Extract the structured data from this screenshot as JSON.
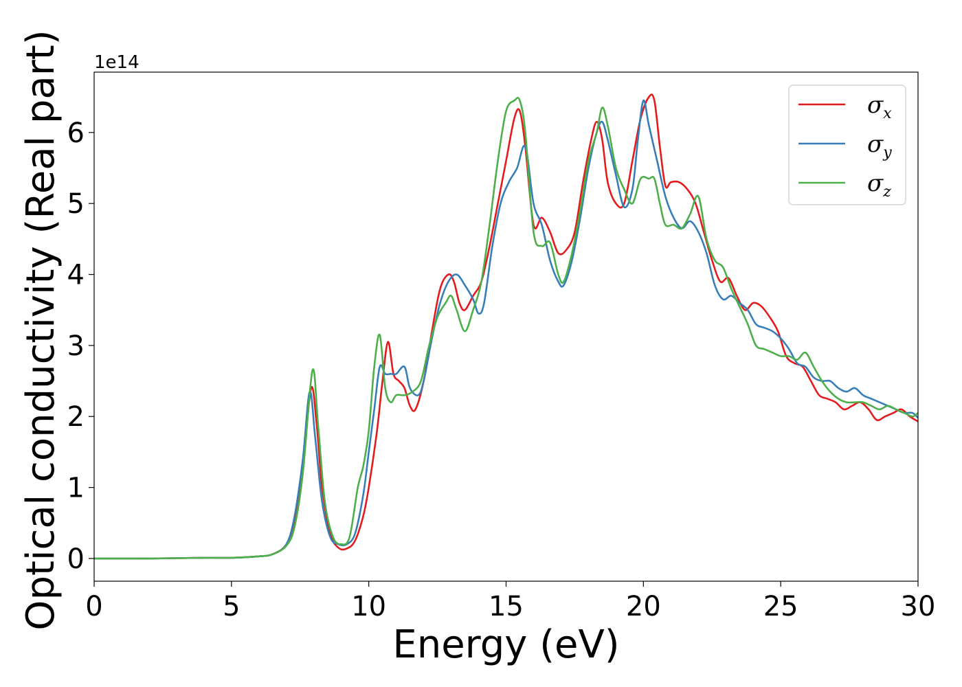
{
  "chart_data": {
    "type": "line",
    "xlabel": "Energy (eV)",
    "ylabel": "Optical conductivity (Real part)",
    "y_offset_label": "1e14",
    "y_scale": 100000000000000.0,
    "xlim": [
      0,
      30
    ],
    "ylim": [
      -0.32,
      6.85
    ],
    "xticks": [
      0,
      5,
      10,
      15,
      20,
      25,
      30
    ],
    "yticks": [
      0,
      1,
      2,
      3,
      4,
      5,
      6
    ],
    "grid": false,
    "legend_position": "top-right",
    "series": [
      {
        "name": "σ",
        "name_sub": "x",
        "color": "#e41a1c",
        "x": [
          0,
          2,
          4,
          5,
          6,
          6.5,
          7,
          7.3,
          7.6,
          7.9,
          8.1,
          8.3,
          8.6,
          8.9,
          9.2,
          9.5,
          9.8,
          10.0,
          10.3,
          10.5,
          10.7,
          10.9,
          11.1,
          11.3,
          11.5,
          11.7,
          12.0,
          12.3,
          12.6,
          12.9,
          13.1,
          13.3,
          13.5,
          13.8,
          14.1,
          14.4,
          14.7,
          15.0,
          15.3,
          15.5,
          15.7,
          16.0,
          16.3,
          16.6,
          16.9,
          17.2,
          17.5,
          17.8,
          18.1,
          18.3,
          18.5,
          18.7,
          19.0,
          19.3,
          19.6,
          19.9,
          20.2,
          20.4,
          20.6,
          20.8,
          21.0,
          21.3,
          21.6,
          21.9,
          22.2,
          22.5,
          22.8,
          23.1,
          23.4,
          23.7,
          24.0,
          24.3,
          24.6,
          24.9,
          25.2,
          25.5,
          25.8,
          26.1,
          26.4,
          26.7,
          27.0,
          27.3,
          27.6,
          27.9,
          28.2,
          28.5,
          28.8,
          29.1,
          29.4,
          29.7,
          30.0
        ],
        "y": [
          0,
          0,
          0.01,
          0.01,
          0.03,
          0.06,
          0.2,
          0.55,
          1.3,
          2.4,
          1.9,
          1.0,
          0.35,
          0.15,
          0.14,
          0.25,
          0.6,
          1.0,
          1.8,
          2.5,
          3.05,
          2.6,
          2.5,
          2.4,
          2.15,
          2.1,
          2.5,
          3.2,
          3.8,
          4.0,
          3.9,
          3.6,
          3.5,
          3.7,
          3.9,
          4.4,
          5.0,
          5.6,
          6.2,
          6.3,
          5.8,
          4.7,
          4.8,
          4.6,
          4.3,
          4.35,
          4.6,
          5.3,
          5.9,
          6.15,
          5.9,
          5.3,
          5.0,
          5.0,
          5.6,
          6.2,
          6.5,
          6.45,
          5.8,
          5.25,
          5.3,
          5.3,
          5.2,
          5.0,
          4.6,
          4.2,
          3.9,
          3.95,
          3.7,
          3.5,
          3.6,
          3.55,
          3.4,
          3.2,
          2.85,
          2.75,
          2.7,
          2.5,
          2.3,
          2.25,
          2.2,
          2.1,
          2.15,
          2.2,
          2.1,
          1.95,
          2.0,
          2.05,
          2.1,
          2.0,
          1.93
        ]
      },
      {
        "name": "σ",
        "name_sub": "y",
        "color": "#377eb8",
        "x": [
          0,
          2,
          4,
          5,
          6,
          6.5,
          7,
          7.3,
          7.6,
          7.85,
          8.05,
          8.3,
          8.6,
          8.9,
          9.2,
          9.5,
          9.8,
          10.0,
          10.2,
          10.4,
          10.6,
          10.8,
          11.0,
          11.3,
          11.5,
          11.8,
          12.0,
          12.3,
          12.6,
          12.9,
          13.2,
          13.5,
          13.8,
          14.0,
          14.2,
          14.5,
          14.8,
          15.1,
          15.4,
          15.7,
          16.0,
          16.3,
          16.6,
          16.9,
          17.1,
          17.4,
          17.7,
          18.0,
          18.3,
          18.5,
          18.7,
          19.0,
          19.3,
          19.6,
          19.8,
          20.0,
          20.2,
          20.5,
          20.8,
          21.1,
          21.4,
          21.7,
          22.0,
          22.3,
          22.6,
          22.9,
          23.2,
          23.5,
          23.8,
          24.1,
          24.4,
          24.7,
          25.0,
          25.3,
          25.6,
          25.9,
          26.2,
          26.5,
          26.8,
          27.1,
          27.4,
          27.7,
          28.0,
          28.3,
          28.6,
          28.9,
          29.2,
          29.5,
          29.8,
          30.0
        ],
        "y": [
          0,
          0,
          0.01,
          0.01,
          0.03,
          0.06,
          0.2,
          0.6,
          1.4,
          2.35,
          1.7,
          0.8,
          0.3,
          0.2,
          0.2,
          0.35,
          0.9,
          1.5,
          2.1,
          2.7,
          2.6,
          2.6,
          2.6,
          2.7,
          2.4,
          2.3,
          2.5,
          3.1,
          3.6,
          3.9,
          4.0,
          3.85,
          3.65,
          3.45,
          3.6,
          4.4,
          5.0,
          5.3,
          5.5,
          5.8,
          5.0,
          4.7,
          4.2,
          3.9,
          3.85,
          4.2,
          4.8,
          5.5,
          6.0,
          6.15,
          5.9,
          5.4,
          4.95,
          5.2,
          5.9,
          6.45,
          6.1,
          5.6,
          5.1,
          4.8,
          4.65,
          4.75,
          4.6,
          4.3,
          3.85,
          3.65,
          3.7,
          3.6,
          3.5,
          3.3,
          3.25,
          3.2,
          3.1,
          2.95,
          2.75,
          2.7,
          2.55,
          2.5,
          2.5,
          2.4,
          2.35,
          2.4,
          2.3,
          2.25,
          2.2,
          2.15,
          2.1,
          2.05,
          2.05,
          1.98
        ]
      },
      {
        "name": "σ",
        "name_sub": "z",
        "color": "#4daf4a",
        "x": [
          0,
          2,
          4,
          5,
          6,
          6.5,
          7,
          7.3,
          7.6,
          7.95,
          8.15,
          8.4,
          8.7,
          9.0,
          9.3,
          9.6,
          9.8,
          10.0,
          10.2,
          10.4,
          10.6,
          10.8,
          11.0,
          11.3,
          11.6,
          11.9,
          12.2,
          12.5,
          12.8,
          13.0,
          13.2,
          13.5,
          13.8,
          14.1,
          14.4,
          14.7,
          15.0,
          15.3,
          15.5,
          15.7,
          16.0,
          16.3,
          16.6,
          16.9,
          17.1,
          17.4,
          17.7,
          18.0,
          18.3,
          18.5,
          18.7,
          19.0,
          19.3,
          19.6,
          19.9,
          20.2,
          20.4,
          20.6,
          20.8,
          21.1,
          21.4,
          21.7,
          22.0,
          22.3,
          22.6,
          22.9,
          23.2,
          23.5,
          23.8,
          24.1,
          24.4,
          24.7,
          25.0,
          25.3,
          25.6,
          25.9,
          26.2,
          26.5,
          26.8,
          27.1,
          27.4,
          27.7,
          28.0,
          28.3,
          28.6,
          28.9,
          29.2,
          29.5,
          29.8,
          30.0
        ],
        "y": [
          0,
          0,
          0.01,
          0.01,
          0.03,
          0.06,
          0.18,
          0.45,
          1.2,
          2.65,
          1.9,
          0.8,
          0.3,
          0.2,
          0.3,
          1.0,
          1.3,
          1.8,
          2.7,
          3.15,
          2.4,
          2.2,
          2.3,
          2.3,
          2.35,
          2.5,
          3.0,
          3.4,
          3.6,
          3.7,
          3.5,
          3.2,
          3.5,
          3.9,
          4.7,
          5.6,
          6.3,
          6.45,
          6.45,
          6.0,
          4.6,
          4.4,
          4.45,
          4.0,
          3.9,
          4.3,
          4.9,
          5.6,
          6.0,
          6.35,
          6.1,
          5.5,
          5.2,
          5.0,
          5.35,
          5.35,
          5.35,
          5.0,
          4.7,
          4.7,
          4.65,
          4.85,
          5.1,
          4.5,
          4.2,
          4.1,
          3.8,
          3.55,
          3.3,
          3.0,
          2.95,
          2.9,
          2.85,
          2.85,
          2.8,
          2.9,
          2.7,
          2.5,
          2.35,
          2.25,
          2.2,
          2.2,
          2.2,
          2.15,
          2.1,
          2.15,
          2.1,
          2.05,
          2.0,
          2.05
        ]
      }
    ]
  }
}
